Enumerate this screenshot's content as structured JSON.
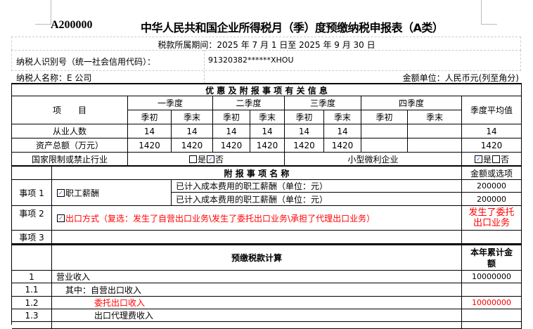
{
  "header": {
    "form_code": "A200000",
    "title": "中华人民共和国企业所得税月（季）度预缴纳税申报表（A类）"
  },
  "info": {
    "period": "税款所属期间：2025 年 7 月 1 日至 2025 年 9 月 30 日",
    "taxpayer_id_label": "纳税人识别号（统一社会信用代码）：",
    "taxpayer_id_value": "91320382******XHOU",
    "taxpayer_name": "纳税人名称：E 公司",
    "amount_unit": "金额单位：人民币元(列至角分)"
  },
  "preferential": {
    "section_title": "优 惠 及 附 报 事 项 有 关 信 息",
    "item_header": "项　　目",
    "quarters": [
      "一季度",
      "二季度",
      "三季度",
      "四季度"
    ],
    "sub_headers": [
      "季初",
      "季末",
      "季初",
      "季末",
      "季初",
      "季末",
      "季初",
      "季末"
    ],
    "avg_header": "季度平均值",
    "rows": [
      {
        "label": "从业人数",
        "values": [
          "14",
          "14",
          "14",
          "14",
          "14",
          "14",
          "",
          ""
        ],
        "avg": "14"
      },
      {
        "label": "资产总额（万元）",
        "values": [
          "1420",
          "1420",
          "1420",
          "1420",
          "1420",
          "1420",
          "",
          ""
        ],
        "avg": "1420"
      }
    ],
    "restricted_label": "国家限制或禁止行业",
    "restricted_yes": "是",
    "restricted_no": "否",
    "restricted_value": "否",
    "small_label": "小型微利企业",
    "small_yes": "是",
    "small_no": "否",
    "small_value": "是"
  },
  "supplementary": {
    "name_header": "附 报 事 项 名 称",
    "amount_header": "金额或选项",
    "items": [
      {
        "label": "事项 1",
        "name": "职工薪酬",
        "checked": true,
        "sub": [
          {
            "desc": "已计入成本费用的职工薪酬（单位：元）",
            "value": "200000"
          },
          {
            "desc": "已计入成本费用的职工薪酬（单位：元）",
            "value": "200000"
          }
        ]
      },
      {
        "label": "事项 2",
        "name": "出口方式（复选：发生了自营出口业务\\发生了委托出口业务\\承担了代理出口业务）",
        "checked": true,
        "value_line1": "发生了委托",
        "value_line2": "出口业务"
      },
      {
        "label": "事项 3",
        "name": "",
        "value": ""
      }
    ]
  },
  "calc": {
    "section_title": "预缴税款计算",
    "amount_header_line1": "本年累计金",
    "amount_header_line2": "额",
    "rows": [
      {
        "no": "1",
        "label": "营业收入",
        "value": "10000000"
      },
      {
        "no": "1.1",
        "label": "其中：自营出口收入",
        "value": ""
      },
      {
        "no": "1.2",
        "label": "委托出口收入",
        "value": "10000000"
      },
      {
        "no": "1.3",
        "label": "出口代理费收入",
        "value": ""
      }
    ]
  },
  "colors": {
    "highlight": "#ff0000",
    "checkbox": "#1a5fd1"
  }
}
